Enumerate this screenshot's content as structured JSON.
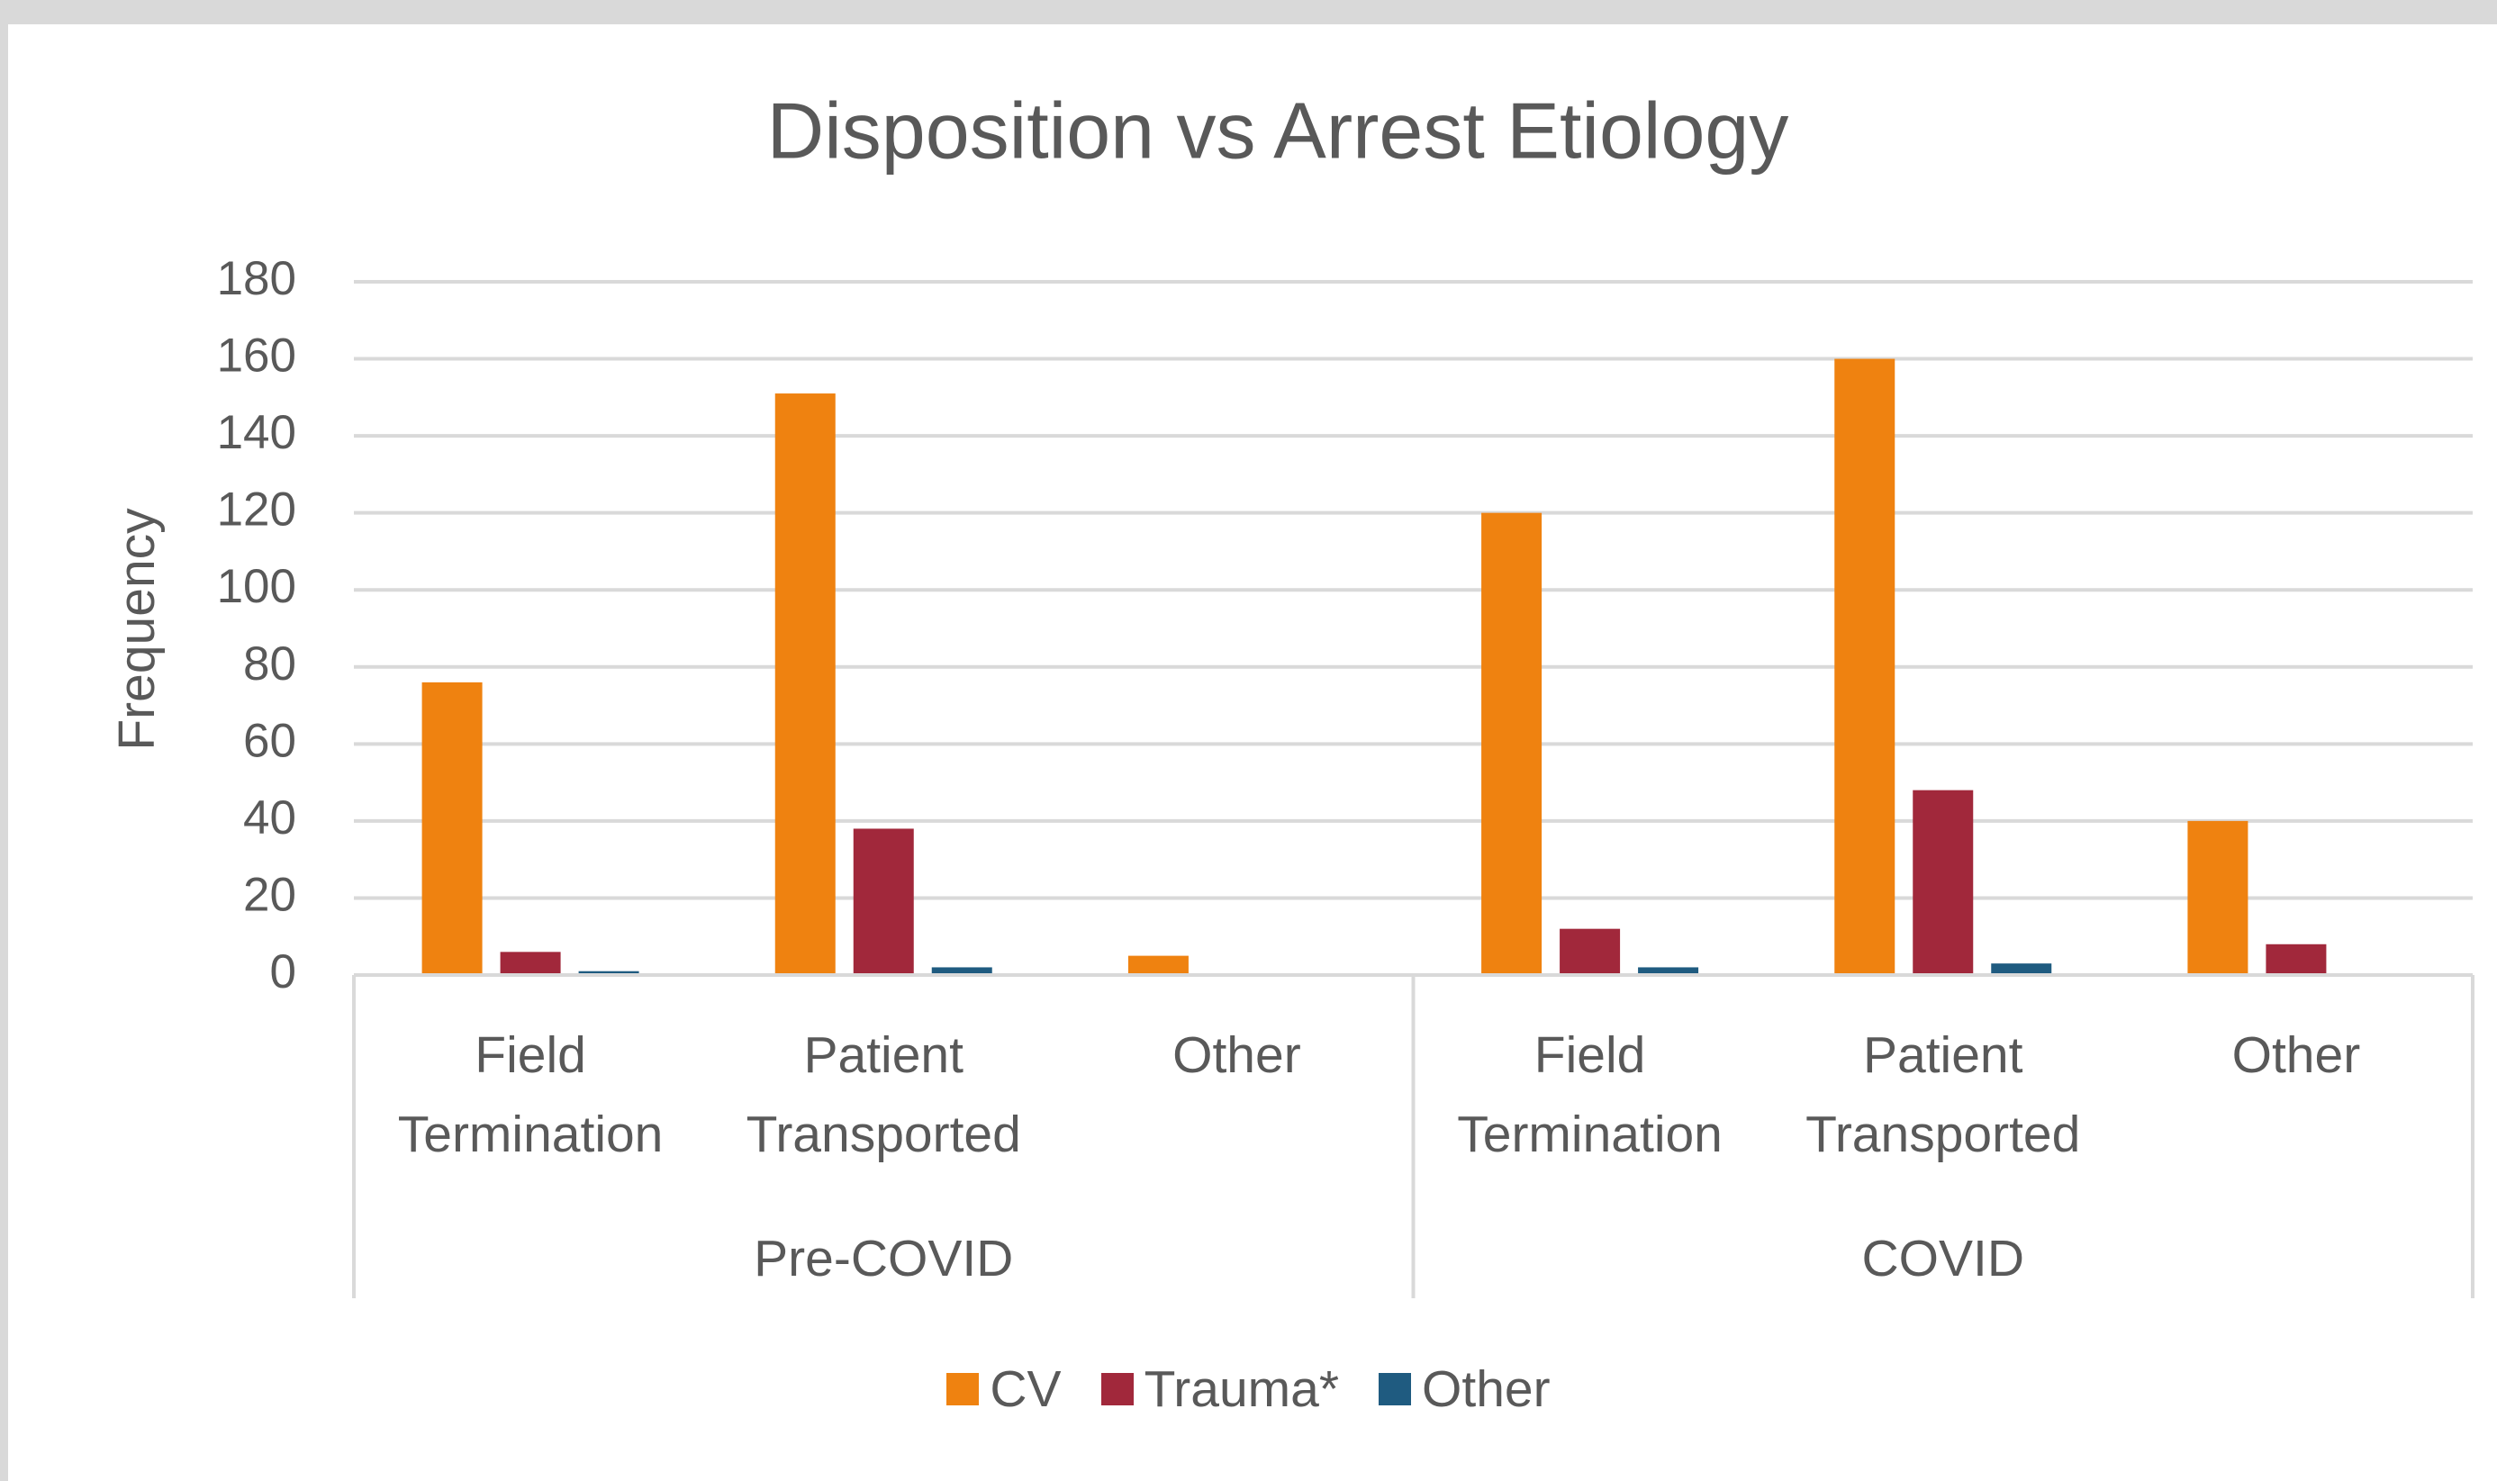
{
  "chart_data": {
    "type": "bar",
    "title": "Disposition vs Arrest Etiology",
    "y_label": "Frequency",
    "groups": [
      "Pre-COVID",
      "COVID"
    ],
    "categories": [
      "Field Termination",
      "Patient Transported",
      "Other",
      "Field Termination",
      "Patient Transported",
      "Other"
    ],
    "series": [
      {
        "name": "CV",
        "color": "#ef8210",
        "values": [
          76,
          151,
          5,
          120,
          160,
          40
        ]
      },
      {
        "name": "Trauma*",
        "color": "#a1283b",
        "values": [
          6,
          38,
          0,
          12,
          48,
          8
        ]
      },
      {
        "name": "Other",
        "color": "#1f5b80",
        "values": [
          1,
          2,
          0,
          2,
          3,
          0
        ]
      }
    ],
    "ylim": [
      0,
      180
    ],
    "yticks": [
      0,
      20,
      40,
      60,
      80,
      100,
      120,
      140,
      160,
      180
    ],
    "grid": true
  }
}
